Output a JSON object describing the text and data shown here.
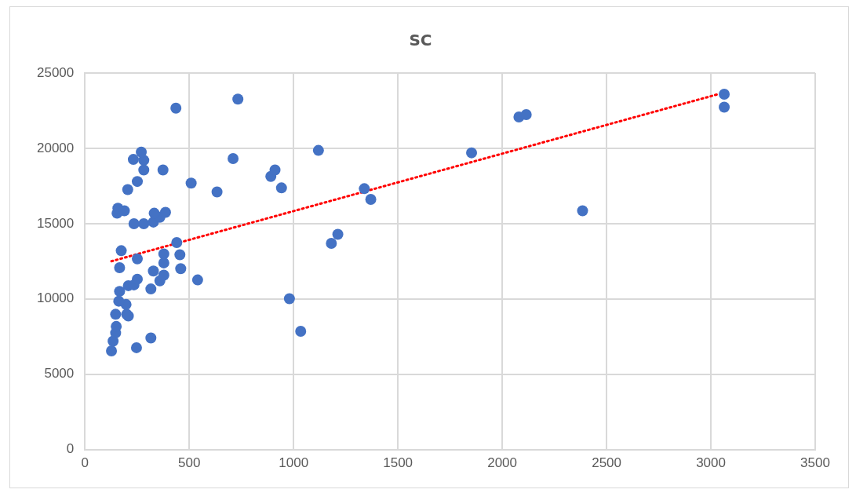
{
  "chart_data": {
    "type": "scatter",
    "title": "SC",
    "xlim": [
      0,
      3500
    ],
    "xticks": [
      0,
      500,
      1000,
      1500,
      2000,
      2500,
      3000,
      3500
    ],
    "ylim": [
      0,
      25000
    ],
    "yticks": [
      0,
      5000,
      10000,
      15000,
      20000,
      25000
    ],
    "grid": true,
    "legend": false,
    "marker": "circle",
    "series": [
      {
        "color": "#4472c4",
        "x": [
          127,
          135,
          147,
          150,
          147,
          200,
          208,
          197,
          162,
          166,
          208,
          235,
          251,
          359,
          378,
          328,
          316,
          247,
          316,
          166,
          174,
          251,
          378,
          378,
          459,
          455,
          440,
          540,
          235,
          282,
          154,
          158,
          189,
          328,
          359,
          386,
          332,
          205,
          251,
          282,
          282,
          270,
          232,
          374,
          436,
          509,
          633,
          710,
          733,
          891,
          911,
          942,
          980,
          1034,
          1119,
          1181,
          1212,
          1339,
          1370,
          1853,
          2080,
          2115,
          2385,
          3064,
          3064
        ],
        "values": [
          6550,
          7200,
          7740,
          8170,
          8980,
          8980,
          8870,
          9630,
          9850,
          10500,
          10880,
          10930,
          11310,
          11200,
          11580,
          11850,
          10660,
          6760,
          7410,
          12070,
          13200,
          12660,
          12390,
          12990,
          12010,
          12930,
          13740,
          11260,
          14990,
          14990,
          15690,
          16020,
          15850,
          15100,
          15420,
          15750,
          15690,
          17260,
          17800,
          18560,
          19210,
          19750,
          19260,
          18560,
          22670,
          17690,
          17100,
          19320,
          23270,
          18130,
          18560,
          17370,
          10010,
          7850,
          19860,
          13690,
          14290,
          17320,
          16610,
          19700,
          22080,
          22240,
          15850,
          23590,
          22730
        ]
      },
      {
        "type": "line",
        "color": "#ff0000",
        "line_style": "dotted",
        "marker": "none",
        "x": [
          127,
          3034
        ],
        "values": [
          12500,
          23590
        ]
      }
    ]
  }
}
